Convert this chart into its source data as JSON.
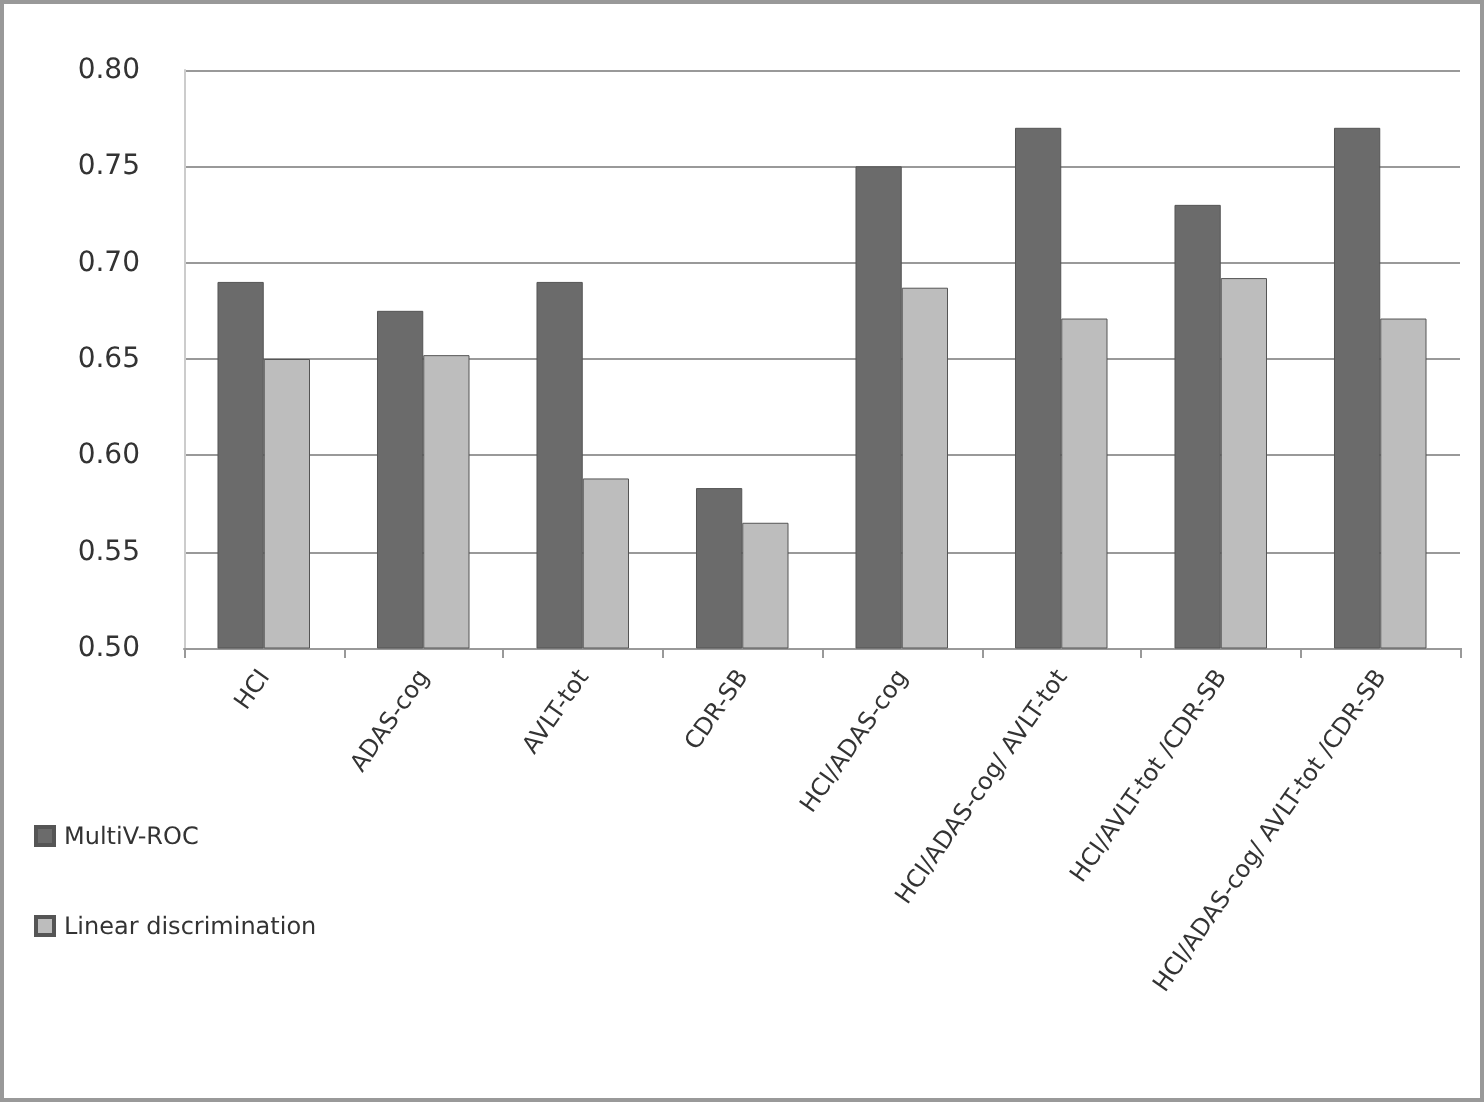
{
  "chart_data": {
    "type": "bar",
    "categories": [
      "HCI",
      "ADAS-cog",
      "AVLT-tot",
      "CDR-SB",
      "HCI/ADAS-cog",
      "HCI/ADAS-cog/ AVLT-tot",
      "HCI/AVLT-tot /CDR-SB",
      "HCI/ADAS-cog/ AVLT-tot /CDR-SB"
    ],
    "series": [
      {
        "name": "MultiV-ROC",
        "color": "#6b6b6b",
        "values": [
          0.69,
          0.675,
          0.69,
          0.583,
          0.75,
          0.77,
          0.73,
          0.77
        ]
      },
      {
        "name": "Linear discrimination",
        "color": "#bdbdbd",
        "values": [
          0.65,
          0.652,
          0.588,
          0.565,
          0.687,
          0.671,
          0.692,
          0.671
        ]
      }
    ],
    "ylim": [
      0.5,
      0.8
    ],
    "yticks": [
      {
        "value": 0.5,
        "label": "0.50"
      },
      {
        "value": 0.55,
        "label": "0.55"
      },
      {
        "value": 0.6,
        "label": "0.60"
      },
      {
        "value": 0.65,
        "label": "0.65"
      },
      {
        "value": 0.7,
        "label": "0.70"
      },
      {
        "value": 0.75,
        "label": "0.75"
      },
      {
        "value": 0.8,
        "label": "0.80"
      }
    ],
    "grid": "y",
    "legend": "bottom left"
  }
}
